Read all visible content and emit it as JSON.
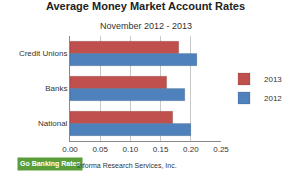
{
  "chart_data": {
    "type": "bar",
    "orientation": "horizontal",
    "title": "Average Money Market Account Rates",
    "subtitle": "November 2012 - 2013",
    "categories": [
      "Credit Unions",
      "Banks",
      "National"
    ],
    "series": [
      {
        "name": "2013",
        "color": "#c0504d",
        "values": [
          0.18,
          0.16,
          0.17
        ]
      },
      {
        "name": "2012",
        "color": "#4f81bd",
        "values": [
          0.21,
          0.19,
          0.2
        ]
      }
    ],
    "xlim": [
      0,
      0.25
    ],
    "xticks": [
      {
        "value": 0,
        "label": "0.00"
      },
      0.05,
      {
        "value": 0.1,
        "label": "0.10"
      },
      0.15,
      {
        "value": 0.2,
        "label": "0.20"
      },
      0.25
    ],
    "grid": true,
    "legend": "right",
    "annotations": [
      "Go Banking Rates",
      "Informa Research Services, Inc."
    ]
  }
}
